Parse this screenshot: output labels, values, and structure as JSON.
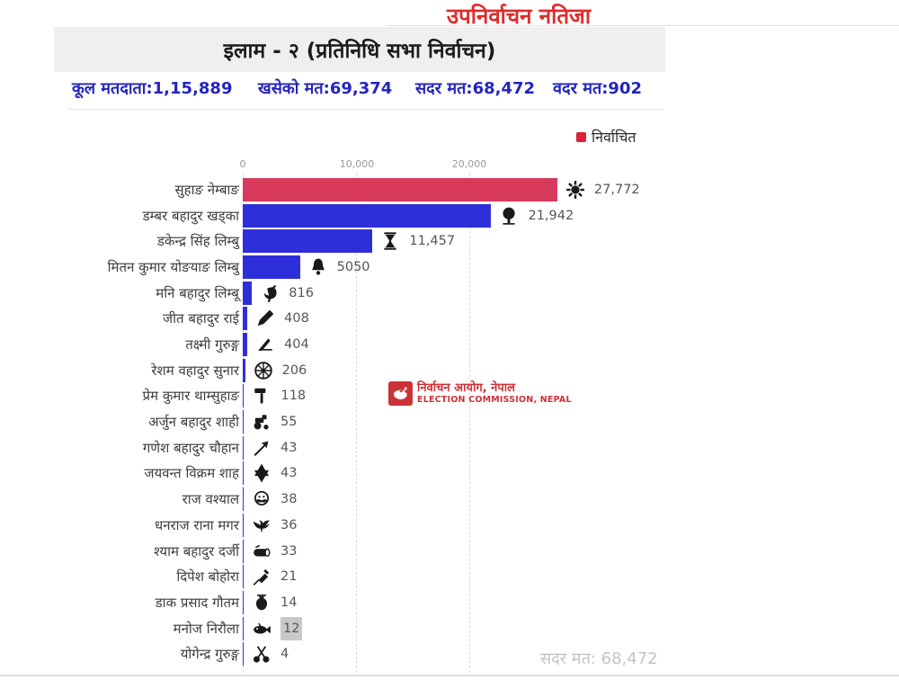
{
  "page": {
    "title": "उपनिर्वाचन नतिजा",
    "header": "इलाम - २ (प्रतिनिधि सभा निर्वाचन)",
    "stats": [
      "कूल मतदाता:1,15,889",
      "खसेको मत:69,374",
      "सदर मत:68,472",
      "वदर मत:902"
    ]
  },
  "legend": {
    "label": "निर्वाचित",
    "color": "#dc1f3a"
  },
  "watermark": {
    "line1": "निर्वाचन आयोग, नेपाल",
    "line2": "ELECTION COMMISSION, NEPAL"
  },
  "footer": {
    "note": "सदर मत: 68,472"
  },
  "chart_data": {
    "type": "bar",
    "orientation": "horizontal",
    "title": "इलाम - २ (प्रतिनिधि सभा निर्वाचन)",
    "xlabel": "",
    "ylabel": "",
    "x_ticks": [
      "0",
      "10,000",
      "20,000"
    ],
    "xlim": [
      0,
      30000
    ],
    "grid": "vertical-dashed",
    "legend_position": "top-right",
    "colors": {
      "elected": "#d73a5c",
      "default": "#2f2fd9"
    },
    "rows": [
      {
        "name": "सुहाङ नेम्बाङ",
        "value": 27772,
        "value_label": "27,772",
        "symbol": "sun",
        "elected": true
      },
      {
        "name": "डम्बर बहादुर खड्का",
        "value": 21942,
        "value_label": "21,942",
        "symbol": "tree",
        "elected": false
      },
      {
        "name": "डकेन्द्र सिंह लिम्बु",
        "value": 11457,
        "value_label": "11,457",
        "symbol": "hourglass",
        "elected": false
      },
      {
        "name": "मितन कुमार योङयाङ लिम्बु",
        "value": 5050,
        "value_label": "5050",
        "symbol": "bell",
        "elected": false
      },
      {
        "name": "मनि बहादुर लिम्बू",
        "value": 816,
        "value_label": "816",
        "symbol": "rooster",
        "elected": false
      },
      {
        "name": "जीत बहादुर राई",
        "value": 408,
        "value_label": "408",
        "symbol": "pen",
        "elected": false
      },
      {
        "name": "तक्ष्मी गुरुङ्ग",
        "value": 404,
        "value_label": "404",
        "symbol": "plough",
        "elected": false
      },
      {
        "name": "रेशम वहादुर सुनार",
        "value": 206,
        "value_label": "206",
        "symbol": "wheel",
        "elected": false
      },
      {
        "name": "प्रेम कुमार थाम्सुहाङ",
        "value": 118,
        "value_label": "118",
        "symbol": "hammer",
        "elected": false
      },
      {
        "name": "अर्जुन बहादुर शाही",
        "value": 55,
        "value_label": "55",
        "symbol": "tractor",
        "elected": false
      },
      {
        "name": "गणेश बहादुर चौहान",
        "value": 43,
        "value_label": "43",
        "symbol": "arrow",
        "elected": false
      },
      {
        "name": "जयवन्त विक्रम शाह",
        "value": 43,
        "value_label": "43",
        "symbol": "star-of-david",
        "elected": false
      },
      {
        "name": "राज वश्याल",
        "value": 38,
        "value_label": "38",
        "symbol": "mustache-man",
        "elected": false
      },
      {
        "name": "धनराज राना मगर",
        "value": 36,
        "value_label": "36",
        "symbol": "eagle",
        "elected": false
      },
      {
        "name": "श्याम बहादुर दर्जी",
        "value": 33,
        "value_label": "33",
        "symbol": "log",
        "elected": false
      },
      {
        "name": "दिपेश बोहोरा",
        "value": 21,
        "value_label": "21",
        "symbol": "syringe",
        "elected": false
      },
      {
        "name": "डाक प्रसाद गौतम",
        "value": 14,
        "value_label": "14",
        "symbol": "kalash",
        "elected": false
      },
      {
        "name": "मनोज निरौला",
        "value": 12,
        "value_label": "12",
        "symbol": "fish",
        "elected": false,
        "value_highlighted": true
      },
      {
        "name": "योगेन्द्र गुरुङ्ग",
        "value": 4,
        "value_label": "4",
        "symbol": "scissors",
        "elected": false
      }
    ]
  }
}
